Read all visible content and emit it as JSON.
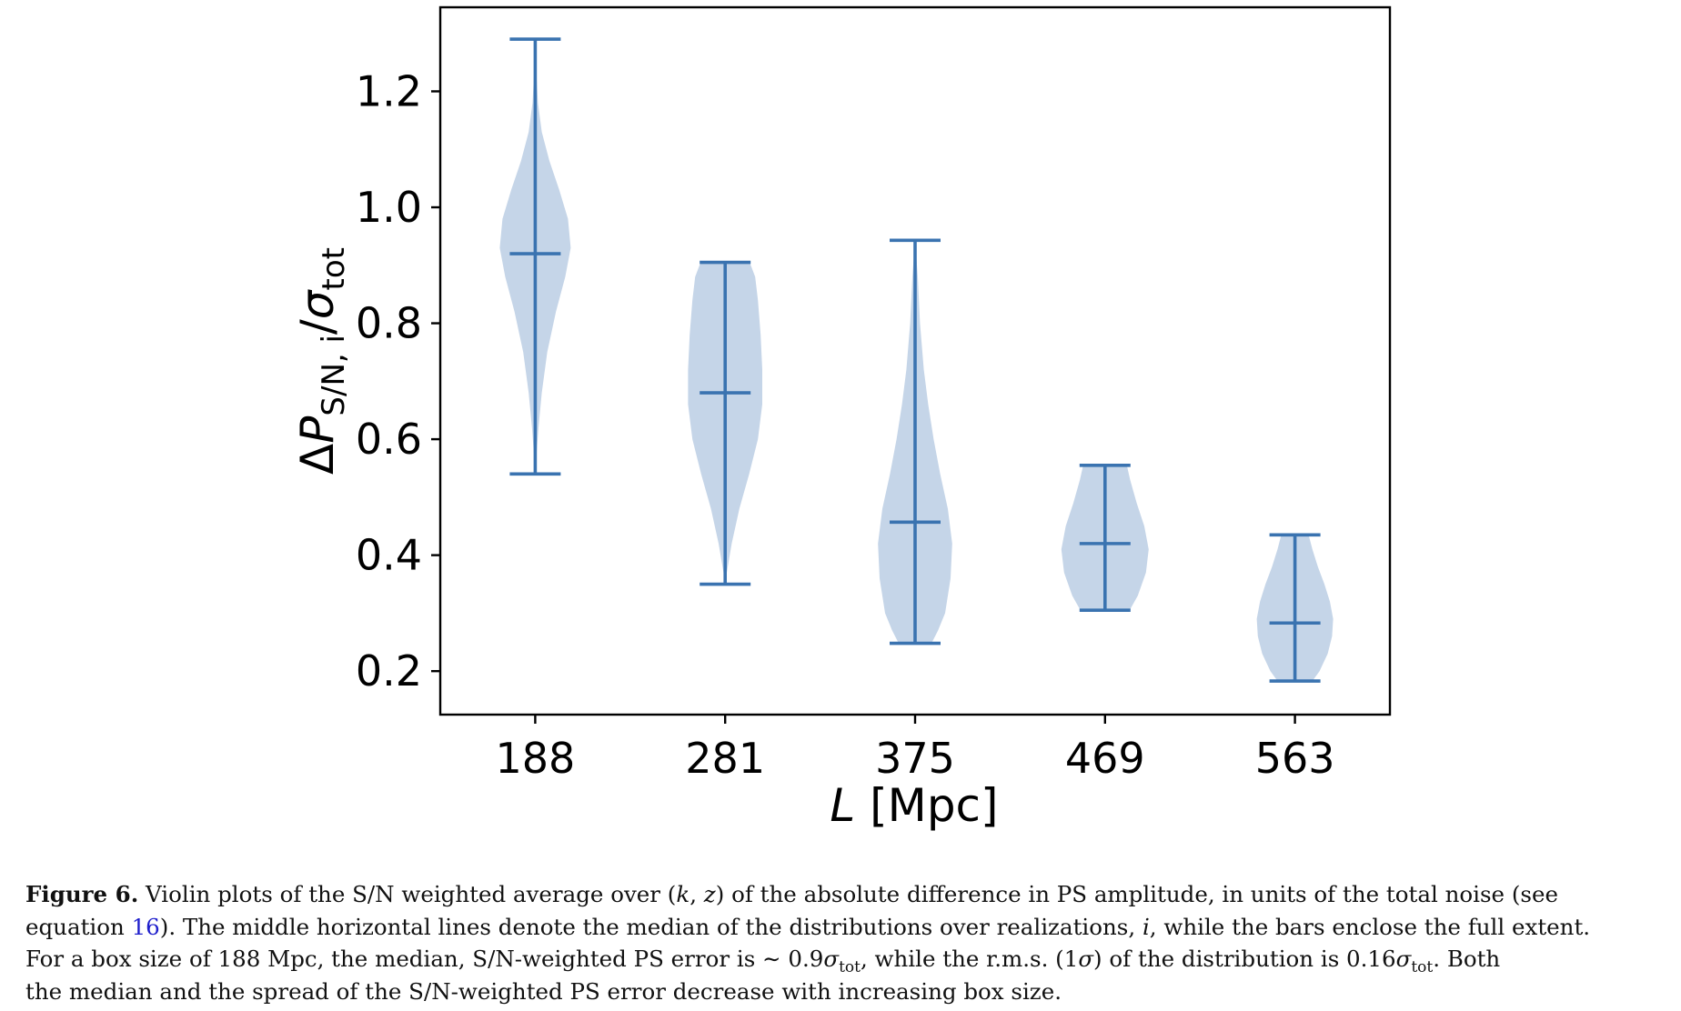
{
  "chart_data": {
    "type": "violin",
    "xlabel": "L [Mpc]",
    "ylabel": "ΔP_S/N,i/σ_tot",
    "categories": [
      "188",
      "281",
      "375",
      "469",
      "563"
    ],
    "yticks": [
      "0.2",
      "0.4",
      "0.6",
      "0.8",
      "1.0",
      "1.2"
    ],
    "ylim": [
      0.125,
      1.345
    ],
    "grid": false,
    "color": "#3a73b0",
    "fill_color": "#c5d5e8",
    "violins": [
      {
        "label": "188",
        "min": 0.54,
        "median": 0.92,
        "max": 1.29,
        "profile": [
          [
            0.54,
            0.0
          ],
          [
            0.57,
            0.02
          ],
          [
            0.62,
            0.06
          ],
          [
            0.68,
            0.12
          ],
          [
            0.75,
            0.22
          ],
          [
            0.82,
            0.38
          ],
          [
            0.88,
            0.55
          ],
          [
            0.93,
            0.65
          ],
          [
            0.98,
            0.6
          ],
          [
            1.03,
            0.44
          ],
          [
            1.08,
            0.26
          ],
          [
            1.13,
            0.12
          ],
          [
            1.18,
            0.05
          ],
          [
            1.24,
            0.015
          ],
          [
            1.29,
            0.0
          ]
        ]
      },
      {
        "label": "281",
        "min": 0.35,
        "median": 0.68,
        "max": 0.905,
        "profile": [
          [
            0.35,
            0.0
          ],
          [
            0.37,
            0.03
          ],
          [
            0.42,
            0.12
          ],
          [
            0.48,
            0.26
          ],
          [
            0.54,
            0.44
          ],
          [
            0.6,
            0.6
          ],
          [
            0.66,
            0.68
          ],
          [
            0.72,
            0.68
          ],
          [
            0.78,
            0.65
          ],
          [
            0.84,
            0.6
          ],
          [
            0.88,
            0.55
          ],
          [
            0.905,
            0.45
          ]
        ]
      },
      {
        "label": "375",
        "min": 0.248,
        "median": 0.457,
        "max": 0.943,
        "profile": [
          [
            0.248,
            0.3
          ],
          [
            0.27,
            0.42
          ],
          [
            0.3,
            0.55
          ],
          [
            0.36,
            0.65
          ],
          [
            0.42,
            0.68
          ],
          [
            0.48,
            0.6
          ],
          [
            0.54,
            0.46
          ],
          [
            0.6,
            0.34
          ],
          [
            0.66,
            0.24
          ],
          [
            0.72,
            0.16
          ],
          [
            0.8,
            0.09
          ],
          [
            0.88,
            0.05
          ],
          [
            0.943,
            0.0
          ]
        ]
      },
      {
        "label": "469",
        "min": 0.305,
        "median": 0.42,
        "max": 0.555,
        "profile": [
          [
            0.305,
            0.45
          ],
          [
            0.33,
            0.6
          ],
          [
            0.37,
            0.75
          ],
          [
            0.41,
            0.8
          ],
          [
            0.45,
            0.72
          ],
          [
            0.49,
            0.58
          ],
          [
            0.53,
            0.46
          ],
          [
            0.555,
            0.4
          ]
        ]
      },
      {
        "label": "563",
        "min": 0.183,
        "median": 0.283,
        "max": 0.435,
        "profile": [
          [
            0.183,
            0.32
          ],
          [
            0.2,
            0.45
          ],
          [
            0.23,
            0.6
          ],
          [
            0.26,
            0.68
          ],
          [
            0.29,
            0.7
          ],
          [
            0.32,
            0.64
          ],
          [
            0.35,
            0.54
          ],
          [
            0.38,
            0.42
          ],
          [
            0.41,
            0.32
          ],
          [
            0.435,
            0.25
          ]
        ]
      }
    ]
  },
  "caption": {
    "label": "Figure 6.",
    "line1_a": " Violin plots of the S/N weighted average over (",
    "k": "k",
    "comma": ", ",
    "z": "z",
    "line1_b": ") of the absolute difference in PS amplitude, in units of the total noise (see",
    "line2_a": "equation ",
    "ref": "16",
    "line2_b": "). The middle horizontal lines denote the median of the distributions over realizations, ",
    "i": "i",
    "line2_c": ", while the bars enclose the full extent.",
    "line3_a": "For a box size of 188 Mpc, the median, S/N-weighted PS error is ∼ 0.9",
    "sigma": "σ",
    "tot": "tot",
    "line3_b": ", while the r.m.s. (1",
    "line3_c": ") of the distribution is 0.16",
    "line3_d": ". Both",
    "line4": "the median and the spread of the S/N-weighted PS error decrease with increasing box size."
  }
}
